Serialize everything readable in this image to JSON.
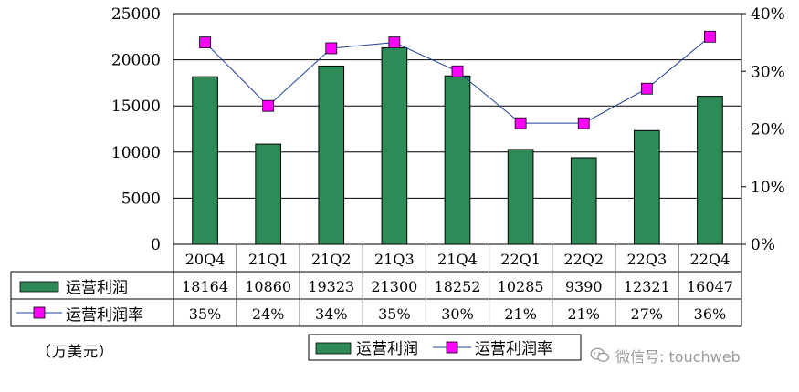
{
  "chart_data": {
    "type": "bar+line",
    "categories": [
      "20Q4",
      "21Q1",
      "21Q2",
      "21Q3",
      "21Q4",
      "22Q1",
      "22Q2",
      "22Q3",
      "22Q4"
    ],
    "series": [
      {
        "name": "运营利润",
        "type": "bar",
        "axis": "left",
        "values": [
          18164,
          10860,
          19323,
          21300,
          18252,
          10285,
          9390,
          12321,
          16047
        ],
        "labels": [
          "18164",
          "10860",
          "19323",
          "21300",
          "18252",
          "10285",
          "9390",
          "12321",
          "16047"
        ]
      },
      {
        "name": "运营利润率",
        "type": "line",
        "axis": "right",
        "values": [
          35,
          24,
          34,
          35,
          30,
          21,
          21,
          27,
          36
        ],
        "labels": [
          "35%",
          "24%",
          "34%",
          "35%",
          "30%",
          "21%",
          "21%",
          "27%",
          "36%"
        ]
      }
    ],
    "y_left": {
      "min": 0,
      "max": 25000,
      "ticks": [
        "0",
        "5000",
        "10000",
        "15000",
        "20000",
        "25000"
      ]
    },
    "y_right": {
      "min": 0,
      "max": 40,
      "ticks": [
        "0%",
        "10%",
        "20%",
        "30%",
        "40%"
      ]
    },
    "grid": true,
    "legend_position": "bottom",
    "colors": {
      "bar": "#2e8b57",
      "line": "#1f3f9a",
      "marker": "#ff00ff"
    }
  },
  "unit_label": "（万美元）",
  "watermark": "微信号: touchweb"
}
